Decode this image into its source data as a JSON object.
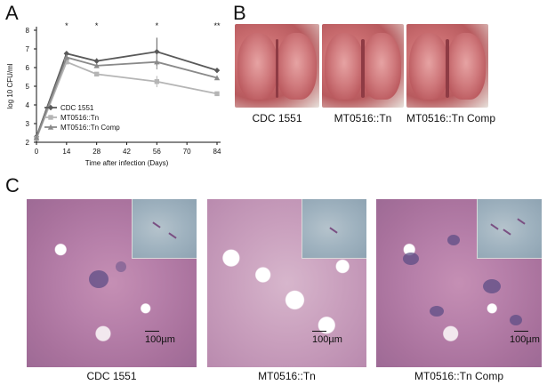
{
  "panels": {
    "a_label": "A",
    "b_label": "B",
    "c_label": "C"
  },
  "chart_data": {
    "type": "line",
    "ylabel": "log 10 CFU/ml",
    "xlabel": "Time after infection (Days)",
    "x": [
      0,
      14,
      28,
      56,
      84
    ],
    "xticks": [
      "0",
      "14",
      "28",
      "42",
      "56",
      "70",
      "84"
    ],
    "yticks": [
      "2",
      "3",
      "4",
      "5",
      "6",
      "7",
      "8"
    ],
    "xlim": [
      0,
      84
    ],
    "ylim": [
      2,
      8
    ],
    "significance": [
      {
        "x": 14,
        "text": "*"
      },
      {
        "x": 28,
        "text": "*"
      },
      {
        "x": 56,
        "text": "*"
      },
      {
        "x": 84,
        "text": "**"
      }
    ],
    "legend_position": "bottom-left",
    "series": [
      {
        "name": "CDC 1551",
        "color": "#595959",
        "marker": "diamond",
        "values": [
          2.3,
          6.75,
          6.35,
          6.85,
          5.85
        ],
        "errors": [
          0.1,
          0.1,
          0.15,
          0.75,
          0.1
        ]
      },
      {
        "name": "MT0516::Tn",
        "color": "#b5b5b5",
        "marker": "square",
        "values": [
          2.2,
          6.3,
          5.65,
          5.25,
          4.6
        ],
        "errors": [
          0.1,
          0.1,
          0.1,
          0.3,
          0.1
        ]
      },
      {
        "name": "MT0516::Tn Comp",
        "color": "#8a8a8a",
        "marker": "triangle",
        "values": [
          2.25,
          6.55,
          6.1,
          6.3,
          5.45
        ],
        "errors": [
          0.1,
          0.15,
          0.1,
          0.4,
          0.1
        ]
      }
    ]
  },
  "lungs": [
    {
      "label": "CDC 1551"
    },
    {
      "label": "MT0516::Tn"
    },
    {
      "label": "MT0516::Tn Comp"
    }
  ],
  "histology": [
    {
      "label": "CDC 1551",
      "scale": "100µm"
    },
    {
      "label": "MT0516::Tn",
      "scale": "100µm"
    },
    {
      "label": "MT0516::Tn Comp",
      "scale": "100µm"
    }
  ]
}
